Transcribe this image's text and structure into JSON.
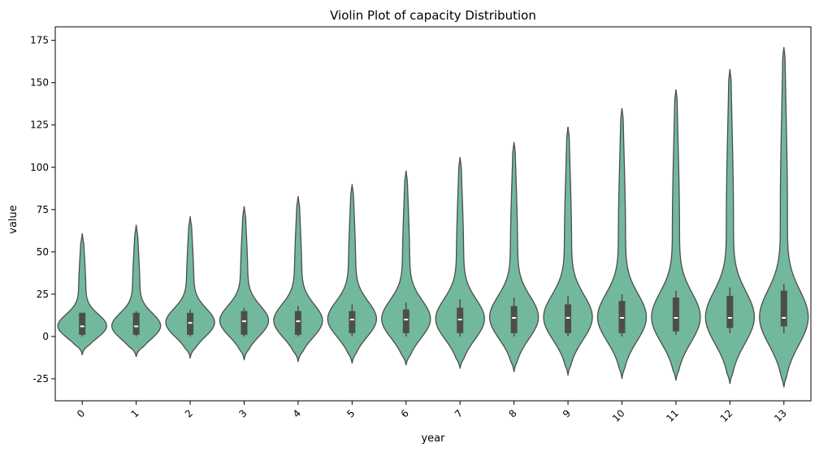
{
  "chart_data": {
    "type": "violin",
    "title": "Violin Plot of capacity Distribution",
    "xlabel": "year",
    "ylabel": "value",
    "ylim": [
      -38,
      183
    ],
    "yticks": [
      -25,
      0,
      25,
      50,
      75,
      100,
      125,
      150,
      175
    ],
    "grid": false,
    "legend": "none",
    "colors": {
      "fill": "#72b89d",
      "edge": "#4d4d4d",
      "box": "#4d4d4d",
      "median": "#ffffff"
    },
    "categories": [
      "0",
      "1",
      "2",
      "3",
      "4",
      "5",
      "6",
      "7",
      "8",
      "9",
      "10",
      "11",
      "12",
      "13"
    ],
    "violins": [
      {
        "year": "0",
        "min": -11,
        "max": 61,
        "q1": 1,
        "median": 6,
        "q3": 14,
        "wl": 0,
        "wh": 14
      },
      {
        "year": "1",
        "min": -12,
        "max": 66,
        "q1": 1,
        "median": 6,
        "q3": 14,
        "wl": 0,
        "wh": 15
      },
      {
        "year": "2",
        "min": -13,
        "max": 71,
        "q1": 1,
        "median": 8,
        "q3": 14,
        "wl": 0,
        "wh": 16
      },
      {
        "year": "3",
        "min": -14,
        "max": 77,
        "q1": 1,
        "median": 9,
        "q3": 15,
        "wl": 0,
        "wh": 17
      },
      {
        "year": "4",
        "min": -15,
        "max": 83,
        "q1": 1,
        "median": 9,
        "q3": 15,
        "wl": 0,
        "wh": 18
      },
      {
        "year": "5",
        "min": -16,
        "max": 90,
        "q1": 2,
        "median": 10,
        "q3": 15,
        "wl": 0,
        "wh": 19
      },
      {
        "year": "6",
        "min": -17,
        "max": 98,
        "q1": 2,
        "median": 10,
        "q3": 16,
        "wl": 0,
        "wh": 20
      },
      {
        "year": "7",
        "min": -19,
        "max": 106,
        "q1": 2,
        "median": 10,
        "q3": 17,
        "wl": 0,
        "wh": 22
      },
      {
        "year": "8",
        "min": -21,
        "max": 115,
        "q1": 2,
        "median": 11,
        "q3": 18,
        "wl": 0,
        "wh": 23
      },
      {
        "year": "9",
        "min": -23,
        "max": 124,
        "q1": 2,
        "median": 11,
        "q3": 19,
        "wl": 0,
        "wh": 24
      },
      {
        "year": "10",
        "min": -25,
        "max": 135,
        "q1": 2,
        "median": 11,
        "q3": 21,
        "wl": 0,
        "wh": 25
      },
      {
        "year": "11",
        "min": -26,
        "max": 146,
        "q1": 3,
        "median": 11,
        "q3": 23,
        "wl": 1,
        "wh": 27
      },
      {
        "year": "12",
        "min": -28,
        "max": 158,
        "q1": 5,
        "median": 11,
        "q3": 24,
        "wl": 2,
        "wh": 29
      },
      {
        "year": "13",
        "min": -30,
        "max": 171,
        "q1": 6,
        "median": 11,
        "q3": 27,
        "wl": 2,
        "wh": 31
      }
    ]
  }
}
